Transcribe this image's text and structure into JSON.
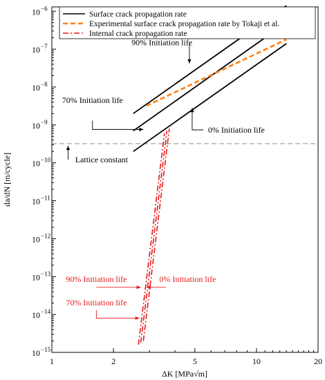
{
  "chart_data": {
    "type": "line",
    "xscale": "log",
    "yscale": "log",
    "xlim": [
      1,
      20
    ],
    "ylim": [
      1e-15,
      1.3e-06
    ],
    "xlabel": "ΔK [MPa√m]",
    "ylabel": "da/dN [m/cycle]",
    "grid": false,
    "legend_position": "top",
    "x_ticks": [
      {
        "value": 1,
        "label": "1"
      },
      {
        "value": 2,
        "label": "2"
      },
      {
        "value": 5,
        "label": "5"
      },
      {
        "value": 10,
        "label": "10"
      },
      {
        "value": 20,
        "label": "20"
      }
    ],
    "y_ticks": [
      {
        "value": 1e-15,
        "base": "10",
        "exp": "−15"
      },
      {
        "value": 1e-14,
        "base": "10",
        "exp": "−14"
      },
      {
        "value": 1e-13,
        "base": "10",
        "exp": "−13"
      },
      {
        "value": 1e-12,
        "base": "10",
        "exp": "−12"
      },
      {
        "value": 1e-11,
        "base": "10",
        "exp": "−11"
      },
      {
        "value": 1e-10,
        "base": "10",
        "exp": "−10"
      },
      {
        "value": 1e-09,
        "base": "10",
        "exp": "−9"
      },
      {
        "value": 1e-08,
        "base": "10",
        "exp": "−8"
      },
      {
        "value": 1e-07,
        "base": "10",
        "exp": "−7"
      },
      {
        "value": 1e-06,
        "base": "10",
        "exp": "−6"
      }
    ],
    "legend": [
      {
        "label": "Surface crack propagation rate",
        "color": "#000000",
        "style": "solid"
      },
      {
        "label": "Experimental surface crack propagation rate by Tokaji et al.",
        "color": "#ff7f0e",
        "style": "dashed"
      },
      {
        "label": "Internal crack propagation rate",
        "color": "#e8191b",
        "style": "dashdot"
      }
    ],
    "series": [
      {
        "group": "surface",
        "color": "#000000",
        "style": "solid",
        "width": 1.8,
        "points": [
          [
            2.5,
            2e-09
          ],
          [
            14,
            1.4e-06
          ]
        ]
      },
      {
        "group": "surface",
        "color": "#000000",
        "style": "solid",
        "width": 1.8,
        "points": [
          [
            2.5,
            7e-10
          ],
          [
            14,
            5e-07
          ]
        ]
      },
      {
        "group": "surface",
        "color": "#000000",
        "style": "solid",
        "width": 1.8,
        "points": [
          [
            2.5,
            2e-10
          ],
          [
            14,
            1.4e-07
          ]
        ]
      },
      {
        "group": "experimental",
        "color": "#ff7f0e",
        "style": "dashed",
        "width": 2.6,
        "points": [
          [
            2.9,
            3.2e-09
          ],
          [
            14,
            1.8e-07
          ]
        ]
      },
      {
        "group": "internal",
        "color": "#e8191b",
        "style": "dashdot",
        "width": 1.6,
        "points": [
          [
            2.8,
            2e-15
          ],
          [
            3.75,
            8e-10
          ]
        ]
      },
      {
        "group": "internal",
        "color": "#e8191b",
        "style": "dashdot",
        "width": 1.6,
        "points": [
          [
            2.72,
            1.8e-15
          ],
          [
            3.65,
            7e-10
          ]
        ]
      },
      {
        "group": "internal",
        "color": "#e8191b",
        "style": "dashdot",
        "width": 1.6,
        "points": [
          [
            2.65,
            1.6e-15
          ],
          [
            3.55,
            6e-10
          ]
        ]
      }
    ],
    "reference_lines": [
      {
        "label": "Lattice constant",
        "value": 3.2e-10,
        "color": "#aaaaaa",
        "style": "dashed"
      }
    ],
    "annotations": [
      {
        "text": "90% Initiation life",
        "color": "#000000",
        "label_at": [
          2.45,
          1.5e-07
        ],
        "anchor": "start",
        "line": [
          [
            4.7,
            1.5e-07
          ],
          [
            4.7,
            4.2e-08
          ]
        ]
      },
      {
        "text": "70% Initiation life",
        "color": "#000000",
        "label_at": [
          1.58,
          4.5e-09
        ],
        "anchor": "middle",
        "line": [
          [
            1.58,
            1.3e-09
          ],
          [
            1.58,
            7.6e-10
          ],
          [
            2.8,
            7.6e-10
          ]
        ]
      },
      {
        "text": "0% Initiation life",
        "color": "#000000",
        "label_at": [
          5.8,
          7.4e-10
        ],
        "anchor": "start",
        "line": [
          [
            5.5,
            7.4e-10
          ],
          [
            4.85,
            7.4e-10
          ],
          [
            4.85,
            2.8e-09
          ]
        ]
      },
      {
        "text": "Lattice constant",
        "color": "#000000",
        "label_at": [
          1.3,
          1.22e-10
        ],
        "anchor": "start",
        "line": [
          [
            1.2,
            1.22e-10
          ],
          [
            1.2,
            2.8e-10
          ]
        ]
      },
      {
        "text": "90% Initiation life",
        "color": "#e8191b",
        "label_at": [
          1.65,
          8.5e-14
        ],
        "anchor": "middle",
        "line": [
          [
            1.65,
            5.2e-14
          ],
          [
            2.72,
            5.2e-14
          ]
        ]
      },
      {
        "text": "0% Initiation life",
        "color": "#e8191b",
        "label_at": [
          3.35,
          8.5e-14
        ],
        "anchor": "start",
        "line": [
          [
            3.6,
            5.2e-14
          ],
          [
            2.9,
            5.2e-14
          ]
        ]
      },
      {
        "text": "70% Initiation life",
        "color": "#e8191b",
        "label_at": [
          1.65,
          2.05e-14
        ],
        "anchor": "middle",
        "line": [
          [
            1.65,
            1.3e-14
          ],
          [
            1.65,
            8e-15
          ],
          [
            2.68,
            8e-15
          ]
        ]
      }
    ]
  }
}
